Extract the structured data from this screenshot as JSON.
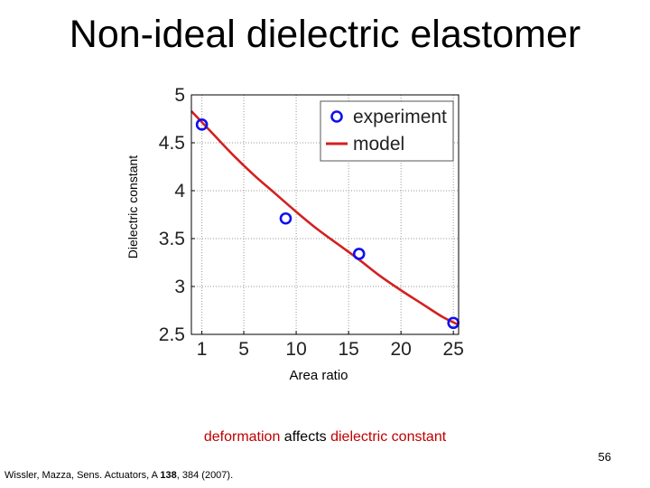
{
  "slide": {
    "title": "Non-ideal dielectric elastomer",
    "caption_part1": "deformation",
    "caption_part2": "affects",
    "caption_part3": "dielectric constant",
    "page_number": "56",
    "citation_pre": "Wissler, Mazza, Sens. Actuators, A ",
    "citation_bold": "138",
    "citation_post": ", 384 (2007)."
  },
  "colors": {
    "experiment": "#1010ee",
    "model": "#d42020",
    "caption_accent": "#c00000"
  },
  "chart_data": {
    "type": "line",
    "title": "",
    "xlabel": "Area ratio",
    "ylabel": "Dielectric constant",
    "xlim": [
      0,
      25.5
    ],
    "ylim": [
      2.5,
      5
    ],
    "xticks": [
      1,
      5,
      10,
      15,
      20,
      25
    ],
    "xtick_labels": [
      "1",
      "5",
      "10",
      "15",
      "20",
      "25"
    ],
    "yticks": [
      2.5,
      3,
      3.5,
      4,
      4.5,
      5
    ],
    "ytick_labels": [
      "2.5",
      "3",
      "3.5",
      "4",
      "4.5",
      "5"
    ],
    "legend_position": "top-right",
    "series": [
      {
        "name": "experiment",
        "kind": "scatter",
        "marker": "circle",
        "x": [
          1,
          9,
          16,
          25
        ],
        "y": [
          4.69,
          3.71,
          3.34,
          2.62
        ]
      },
      {
        "name": "model",
        "kind": "line",
        "x": [
          0,
          2,
          4,
          6,
          8,
          10,
          12,
          14,
          16,
          18,
          20,
          22,
          24,
          25.5
        ],
        "y": [
          4.83,
          4.6,
          4.37,
          4.16,
          3.97,
          3.78,
          3.6,
          3.44,
          3.28,
          3.11,
          2.96,
          2.82,
          2.68,
          2.6
        ]
      }
    ]
  }
}
